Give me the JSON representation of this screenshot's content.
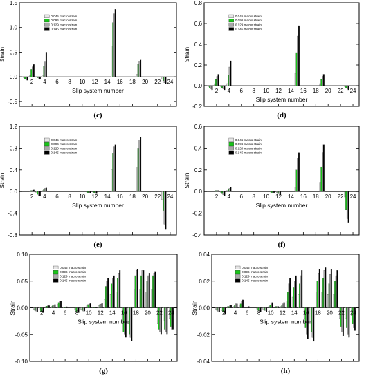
{
  "colors": [
    "#e6e6e6",
    "#18c418",
    "#a8a8a8",
    "#000000"
  ],
  "chart_data": [
    {
      "type": "bar",
      "label": "(c)",
      "xlabel": "Slip system number",
      "ylabel": "Strain",
      "ylim": [
        -0.6,
        1.5
      ],
      "yticks": [
        "1.5",
        "1.0",
        "0.5",
        "0.0",
        "-0.5"
      ],
      "ytick_values": [
        1.5,
        1.0,
        0.5,
        0.0,
        -0.5
      ],
      "xticks": [
        "2",
        "4",
        "6",
        "8",
        "10",
        "12",
        "14",
        "16",
        "18",
        "20",
        "22",
        "24"
      ],
      "categories": [
        1,
        2,
        3,
        4,
        5,
        6,
        7,
        8,
        9,
        10,
        11,
        12,
        13,
        14,
        15,
        16,
        17,
        18,
        19,
        20,
        21,
        22,
        23,
        24
      ],
      "series": [
        {
          "name": "0.045 macro strain",
          "values": [
            -0.02,
            0.04,
            0.0,
            0.03,
            0,
            0,
            0,
            0,
            0,
            0,
            0,
            0,
            0,
            0,
            0.62,
            0,
            0,
            0,
            0.05,
            0,
            0,
            0,
            -0.05,
            0
          ]
        },
        {
          "name": "0.096 macro strain",
          "values": [
            -0.04,
            0.15,
            -0.02,
            0.22,
            0,
            0,
            0,
            0,
            0,
            0,
            0,
            0,
            0,
            0,
            1.1,
            0,
            0,
            0,
            0.25,
            0,
            0,
            0,
            -0.08,
            0
          ]
        },
        {
          "name": "0.129 macro strain",
          "values": [
            -0.06,
            0.2,
            -0.03,
            0.3,
            0,
            0,
            0,
            0,
            0,
            0,
            0,
            0,
            0,
            0,
            1.28,
            0,
            0,
            0,
            0.32,
            0,
            0,
            0,
            -0.12,
            0
          ]
        },
        {
          "name": "0.145 macro strain",
          "values": [
            -0.07,
            0.25,
            -0.04,
            0.5,
            0,
            0,
            0,
            0,
            0,
            0,
            0,
            0,
            0,
            0,
            1.37,
            0,
            0,
            0,
            0.34,
            0,
            0,
            0,
            -0.15,
            0
          ]
        }
      ]
    },
    {
      "type": "bar",
      "label": "(d)",
      "xlabel": "Slip system number",
      "ylabel": "Strain",
      "ylim": [
        -0.2,
        0.8
      ],
      "yticks": [
        "0.8",
        "0.6",
        "0.4",
        "0.2",
        "0.0",
        "-0.2"
      ],
      "ytick_values": [
        0.8,
        0.6,
        0.4,
        0.2,
        0.0,
        -0.2
      ],
      "xticks": [
        "2",
        "4",
        "6",
        "8",
        "10",
        "12",
        "14",
        "16",
        "18",
        "20",
        "22",
        "24"
      ],
      "categories": [
        1,
        2,
        3,
        4,
        5,
        6,
        7,
        8,
        9,
        10,
        11,
        12,
        13,
        14,
        15,
        16,
        17,
        18,
        19,
        20,
        21,
        22,
        23,
        24
      ],
      "series": [
        {
          "name": "0.045 macro strain",
          "values": [
            -0.01,
            0.02,
            -0.01,
            0.02,
            0,
            0,
            0,
            0,
            0,
            0,
            0,
            0,
            0,
            0,
            0.12,
            0,
            0,
            0,
            0.02,
            0,
            0,
            0,
            -0.01,
            0
          ]
        },
        {
          "name": "0.096 macro strain",
          "values": [
            -0.02,
            0.06,
            -0.02,
            0.1,
            0,
            0,
            0,
            0,
            0,
            0,
            0,
            0,
            0,
            0,
            0.32,
            0,
            0,
            0,
            0.06,
            0,
            0,
            0,
            -0.02,
            0
          ]
        },
        {
          "name": "0.129 macro strain",
          "values": [
            -0.03,
            0.09,
            -0.03,
            0.18,
            0,
            0,
            0,
            0,
            0,
            0,
            0,
            0,
            0,
            0,
            0.48,
            0,
            0,
            0,
            0.09,
            0,
            0,
            0,
            -0.03,
            0
          ]
        },
        {
          "name": "0.145 macro strain",
          "values": [
            -0.04,
            0.11,
            -0.04,
            0.24,
            0,
            0,
            0,
            0,
            0,
            0,
            0,
            0,
            0,
            0,
            0.58,
            0,
            0,
            0,
            0.11,
            0,
            0,
            0,
            -0.04,
            0
          ]
        }
      ]
    },
    {
      "type": "bar",
      "label": "(e)",
      "xlabel": "Slip system number",
      "ylabel": "Strain",
      "ylim": [
        -0.8,
        1.2
      ],
      "yticks": [
        "1.2",
        "0.8",
        "0.4",
        "0.0",
        "-0.4",
        "-0.8"
      ],
      "ytick_values": [
        1.2,
        0.8,
        0.4,
        0.0,
        -0.4,
        -0.8
      ],
      "xticks": [
        "2",
        "4",
        "6",
        "8",
        "10",
        "12",
        "14",
        "16",
        "18",
        "20",
        "22",
        "24"
      ],
      "categories": [
        1,
        2,
        3,
        4,
        5,
        6,
        7,
        8,
        9,
        10,
        11,
        12,
        13,
        14,
        15,
        16,
        17,
        18,
        19,
        20,
        21,
        22,
        23,
        24
      ],
      "series": [
        {
          "name": "0.045 macro strain",
          "values": [
            0,
            0.01,
            -0.02,
            0.02,
            0,
            0,
            0,
            0,
            0,
            0,
            -0.01,
            -0.01,
            0,
            0,
            0.4,
            0,
            0,
            0,
            0.45,
            0,
            0,
            0,
            -0.15,
            0
          ]
        },
        {
          "name": "0.096 macro strain",
          "values": [
            0,
            0.02,
            -0.05,
            0.04,
            0,
            0,
            0,
            0,
            0,
            0,
            -0.02,
            -0.02,
            0,
            0,
            0.7,
            0,
            0,
            0,
            0.8,
            0,
            0,
            0,
            -0.35,
            0
          ]
        },
        {
          "name": "0.129 macro strain",
          "values": [
            0,
            0.02,
            -0.07,
            0.06,
            0,
            0,
            0,
            0,
            0,
            0,
            -0.03,
            -0.03,
            0,
            0,
            0.82,
            0,
            0,
            0,
            0.95,
            0,
            0,
            0,
            -0.6,
            0
          ]
        },
        {
          "name": "0.145 macro strain",
          "values": [
            0,
            0.03,
            -0.08,
            0.07,
            0,
            0,
            0,
            0,
            0,
            0,
            -0.03,
            -0.04,
            0,
            0,
            0.86,
            0,
            0,
            0,
            1.0,
            0,
            0,
            0,
            -0.7,
            0
          ]
        }
      ]
    },
    {
      "type": "bar",
      "label": "(f)",
      "xlabel": "Slip system number",
      "ylabel": "Strain",
      "ylim": [
        -0.4,
        0.6
      ],
      "yticks": [
        "0.6",
        "0.4",
        "0.2",
        "0.0",
        "-0.2",
        "-0.4"
      ],
      "ytick_values": [
        0.6,
        0.4,
        0.2,
        0.0,
        -0.2,
        -0.4
      ],
      "xticks": [
        "2",
        "4",
        "6",
        "8",
        "10",
        "12",
        "14",
        "16",
        "18",
        "20",
        "22",
        "24"
      ],
      "categories": [
        1,
        2,
        3,
        4,
        5,
        6,
        7,
        8,
        9,
        10,
        11,
        12,
        13,
        14,
        15,
        16,
        17,
        18,
        19,
        20,
        21,
        22,
        23,
        24
      ],
      "series": [
        {
          "name": "0.045 macro strain",
          "values": [
            0,
            0.0,
            -0.01,
            0.01,
            0,
            0,
            0,
            0,
            0,
            0,
            -0.005,
            -0.01,
            0,
            0,
            0.04,
            0,
            0,
            0,
            0.08,
            0,
            0,
            0,
            -0.05,
            0
          ]
        },
        {
          "name": "0.096 macro strain",
          "values": [
            0,
            0.01,
            -0.02,
            0.02,
            0,
            0,
            0,
            0,
            0,
            0,
            -0.01,
            -0.02,
            0,
            0,
            0.2,
            0,
            0,
            0,
            0.23,
            0,
            0,
            0,
            -0.17,
            0
          ]
        },
        {
          "name": "0.129 macro strain",
          "values": [
            0,
            0.01,
            -0.03,
            0.03,
            0,
            0,
            0,
            0,
            0,
            0,
            -0.01,
            -0.02,
            0,
            0,
            0.31,
            0,
            0,
            0,
            0.36,
            0,
            0,
            0,
            -0.25,
            0
          ]
        },
        {
          "name": "0.145 macro strain",
          "values": [
            0,
            0.01,
            -0.04,
            0.04,
            0,
            0,
            0,
            0,
            0,
            0,
            -0.01,
            -0.03,
            0,
            0,
            0.36,
            0,
            0,
            0,
            0.43,
            0,
            0,
            0,
            -0.29,
            0
          ]
        }
      ]
    },
    {
      "type": "bar",
      "label": "(g)",
      "xlabel": "Slip system number",
      "ylabel": "Strain",
      "ylim": [
        -0.1,
        0.1
      ],
      "yticks": [
        "0.10",
        "0.05",
        "0.00",
        "-0.05",
        "-0.10"
      ],
      "ytick_values": [
        0.1,
        0.05,
        0.0,
        -0.05,
        -0.1
      ],
      "xticks": [
        "2",
        "4",
        "6",
        "8",
        "10",
        "12",
        "14",
        "16",
        "18",
        "20",
        "22",
        "24"
      ],
      "categories": [
        1,
        2,
        3,
        4,
        5,
        6,
        7,
        8,
        9,
        10,
        11,
        12,
        13,
        14,
        15,
        16,
        17,
        18,
        19,
        20,
        21,
        22,
        23,
        24
      ],
      "series": [
        {
          "name": "0.045 macro strain",
          "values": [
            -0.003,
            -0.004,
            0.002,
            0.003,
            0.006,
            0.001,
            0,
            -0.004,
            -0.003,
            0.004,
            0.001,
            0.004,
            0.015,
            0.025,
            0.03,
            -0.025,
            -0.03,
            0.035,
            0.035,
            0.03,
            0.035,
            -0.03,
            -0.025,
            -0.02
          ]
        },
        {
          "name": "0.096 macro strain",
          "values": [
            -0.005,
            -0.007,
            0.003,
            0.004,
            0.01,
            0.001,
            0,
            -0.007,
            -0.005,
            0.006,
            0.001,
            0.006,
            0.04,
            0.045,
            0.055,
            -0.045,
            -0.05,
            0.06,
            0.06,
            0.05,
            0.06,
            -0.04,
            -0.04,
            -0.035
          ]
        },
        {
          "name": "0.129 macro strain",
          "values": [
            -0.006,
            -0.008,
            0.004,
            0.005,
            0.012,
            0.001,
            0,
            -0.008,
            -0.006,
            0.007,
            0.001,
            0.007,
            0.05,
            0.055,
            0.065,
            -0.05,
            -0.055,
            0.07,
            0.07,
            0.06,
            0.065,
            -0.045,
            -0.045,
            -0.04
          ]
        },
        {
          "name": "0.145 macro strain",
          "values": [
            -0.007,
            -0.009,
            0.004,
            0.006,
            0.013,
            0.002,
            0,
            -0.009,
            -0.006,
            0.008,
            0.001,
            0.008,
            0.055,
            0.06,
            0.07,
            -0.055,
            -0.062,
            0.072,
            0.07,
            0.065,
            0.068,
            -0.05,
            -0.05,
            -0.04
          ]
        }
      ]
    },
    {
      "type": "bar",
      "label": "(h)",
      "xlabel": "Slip system number",
      "ylabel": "Strain",
      "ylim": [
        -0.04,
        0.04
      ],
      "yticks": [
        "0.04",
        "0.02",
        "0.00",
        "-0.02",
        "-0.04"
      ],
      "ytick_values": [
        0.04,
        0.02,
        0.0,
        -0.02,
        -0.04
      ],
      "xticks": [
        "2",
        "4",
        "6",
        "8",
        "10",
        "12",
        "14",
        "16",
        "18",
        "20",
        "22",
        "24"
      ],
      "categories": [
        1,
        2,
        3,
        4,
        5,
        6,
        7,
        8,
        9,
        10,
        11,
        12,
        13,
        14,
        15,
        16,
        17,
        18,
        19,
        20,
        21,
        22,
        23,
        24
      ],
      "series": [
        {
          "name": "0.045 macro strain",
          "values": [
            -0.001,
            -0.002,
            0.001,
            0.001,
            0.002,
            0.0,
            0,
            -0.001,
            -0.001,
            0.001,
            0.0,
            0.001,
            0.005,
            0.008,
            0.01,
            -0.008,
            -0.01,
            0.012,
            0.012,
            0.01,
            0.01,
            -0.008,
            -0.008,
            -0.006
          ]
        },
        {
          "name": "0.096 macro strain",
          "values": [
            -0.002,
            -0.003,
            0.001,
            0.002,
            0.003,
            0.0,
            0,
            -0.002,
            -0.002,
            0.002,
            0.001,
            0.002,
            0.012,
            0.015,
            0.018,
            -0.015,
            -0.018,
            0.02,
            0.022,
            0.018,
            0.02,
            -0.014,
            -0.015,
            -0.012
          ]
        },
        {
          "name": "0.129 macro strain",
          "values": [
            -0.003,
            -0.004,
            0.002,
            0.003,
            0.005,
            0.0,
            0,
            -0.003,
            -0.002,
            0.003,
            0.001,
            0.003,
            0.018,
            0.02,
            0.024,
            -0.02,
            -0.022,
            0.026,
            0.028,
            0.025,
            0.024,
            -0.018,
            -0.02,
            -0.015
          ]
        },
        {
          "name": "0.145 macro strain",
          "values": [
            -0.003,
            -0.005,
            0.002,
            0.003,
            0.006,
            0.001,
            0,
            -0.003,
            -0.003,
            0.004,
            0.001,
            0.004,
            0.022,
            0.024,
            0.028,
            -0.023,
            -0.025,
            0.029,
            0.03,
            0.029,
            0.028,
            -0.021,
            -0.022,
            -0.017
          ]
        }
      ]
    }
  ]
}
